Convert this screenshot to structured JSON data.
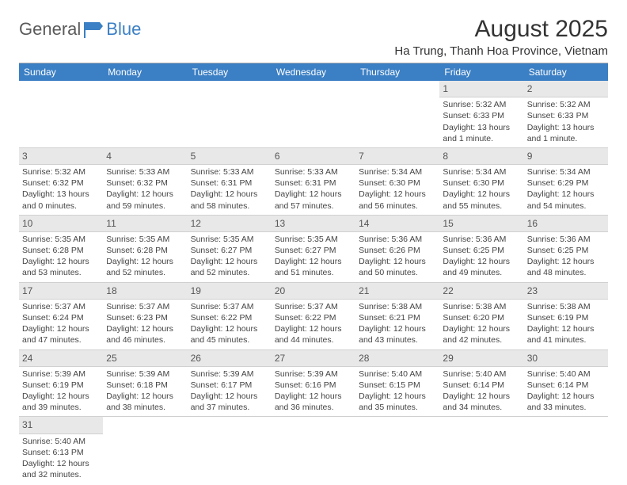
{
  "logo": {
    "word1": "General",
    "word2": "Blue"
  },
  "title": "August 2025",
  "subtitle": "Ha Trung, Thanh Hoa Province, Vietnam",
  "colors": {
    "header_bg": "#3b7fc4",
    "header_text": "#ffffff",
    "daynum_bg": "#e8e8e8",
    "border": "#d0d0d0",
    "logo_gray": "#5a5a5a",
    "logo_blue": "#3b7fc4"
  },
  "dayNames": [
    "Sunday",
    "Monday",
    "Tuesday",
    "Wednesday",
    "Thursday",
    "Friday",
    "Saturday"
  ],
  "weeks": [
    [
      null,
      null,
      null,
      null,
      null,
      {
        "n": "1",
        "sr": "5:32 AM",
        "ss": "6:33 PM",
        "dl": "13 hours and 1 minute."
      },
      {
        "n": "2",
        "sr": "5:32 AM",
        "ss": "6:33 PM",
        "dl": "13 hours and 1 minute."
      }
    ],
    [
      {
        "n": "3",
        "sr": "5:32 AM",
        "ss": "6:32 PM",
        "dl": "13 hours and 0 minutes."
      },
      {
        "n": "4",
        "sr": "5:33 AM",
        "ss": "6:32 PM",
        "dl": "12 hours and 59 minutes."
      },
      {
        "n": "5",
        "sr": "5:33 AM",
        "ss": "6:31 PM",
        "dl": "12 hours and 58 minutes."
      },
      {
        "n": "6",
        "sr": "5:33 AM",
        "ss": "6:31 PM",
        "dl": "12 hours and 57 minutes."
      },
      {
        "n": "7",
        "sr": "5:34 AM",
        "ss": "6:30 PM",
        "dl": "12 hours and 56 minutes."
      },
      {
        "n": "8",
        "sr": "5:34 AM",
        "ss": "6:30 PM",
        "dl": "12 hours and 55 minutes."
      },
      {
        "n": "9",
        "sr": "5:34 AM",
        "ss": "6:29 PM",
        "dl": "12 hours and 54 minutes."
      }
    ],
    [
      {
        "n": "10",
        "sr": "5:35 AM",
        "ss": "6:28 PM",
        "dl": "12 hours and 53 minutes."
      },
      {
        "n": "11",
        "sr": "5:35 AM",
        "ss": "6:28 PM",
        "dl": "12 hours and 52 minutes."
      },
      {
        "n": "12",
        "sr": "5:35 AM",
        "ss": "6:27 PM",
        "dl": "12 hours and 52 minutes."
      },
      {
        "n": "13",
        "sr": "5:35 AM",
        "ss": "6:27 PM",
        "dl": "12 hours and 51 minutes."
      },
      {
        "n": "14",
        "sr": "5:36 AM",
        "ss": "6:26 PM",
        "dl": "12 hours and 50 minutes."
      },
      {
        "n": "15",
        "sr": "5:36 AM",
        "ss": "6:25 PM",
        "dl": "12 hours and 49 minutes."
      },
      {
        "n": "16",
        "sr": "5:36 AM",
        "ss": "6:25 PM",
        "dl": "12 hours and 48 minutes."
      }
    ],
    [
      {
        "n": "17",
        "sr": "5:37 AM",
        "ss": "6:24 PM",
        "dl": "12 hours and 47 minutes."
      },
      {
        "n": "18",
        "sr": "5:37 AM",
        "ss": "6:23 PM",
        "dl": "12 hours and 46 minutes."
      },
      {
        "n": "19",
        "sr": "5:37 AM",
        "ss": "6:22 PM",
        "dl": "12 hours and 45 minutes."
      },
      {
        "n": "20",
        "sr": "5:37 AM",
        "ss": "6:22 PM",
        "dl": "12 hours and 44 minutes."
      },
      {
        "n": "21",
        "sr": "5:38 AM",
        "ss": "6:21 PM",
        "dl": "12 hours and 43 minutes."
      },
      {
        "n": "22",
        "sr": "5:38 AM",
        "ss": "6:20 PM",
        "dl": "12 hours and 42 minutes."
      },
      {
        "n": "23",
        "sr": "5:38 AM",
        "ss": "6:19 PM",
        "dl": "12 hours and 41 minutes."
      }
    ],
    [
      {
        "n": "24",
        "sr": "5:39 AM",
        "ss": "6:19 PM",
        "dl": "12 hours and 39 minutes."
      },
      {
        "n": "25",
        "sr": "5:39 AM",
        "ss": "6:18 PM",
        "dl": "12 hours and 38 minutes."
      },
      {
        "n": "26",
        "sr": "5:39 AM",
        "ss": "6:17 PM",
        "dl": "12 hours and 37 minutes."
      },
      {
        "n": "27",
        "sr": "5:39 AM",
        "ss": "6:16 PM",
        "dl": "12 hours and 36 minutes."
      },
      {
        "n": "28",
        "sr": "5:40 AM",
        "ss": "6:15 PM",
        "dl": "12 hours and 35 minutes."
      },
      {
        "n": "29",
        "sr": "5:40 AM",
        "ss": "6:14 PM",
        "dl": "12 hours and 34 minutes."
      },
      {
        "n": "30",
        "sr": "5:40 AM",
        "ss": "6:14 PM",
        "dl": "12 hours and 33 minutes."
      }
    ],
    [
      {
        "n": "31",
        "sr": "5:40 AM",
        "ss": "6:13 PM",
        "dl": "12 hours and 32 minutes."
      },
      null,
      null,
      null,
      null,
      null,
      null
    ]
  ],
  "labels": {
    "sunrise": "Sunrise: ",
    "sunset": "Sunset: ",
    "daylight": "Daylight: "
  }
}
